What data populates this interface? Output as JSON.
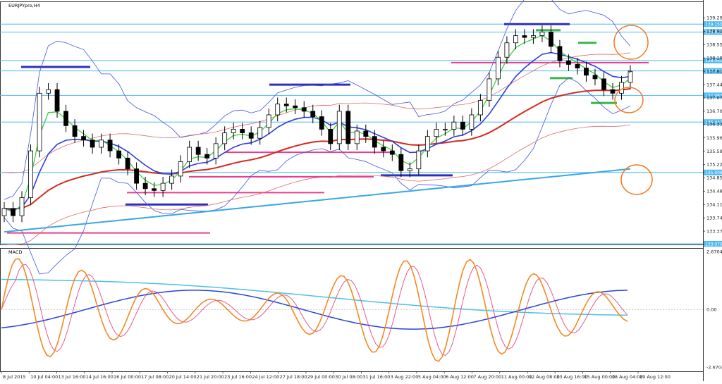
{
  "chart_data": [
    {
      "type": "candlestick",
      "title": "EURJPYpro,H4",
      "symbol": "EURJPYpro",
      "timeframe": "H4",
      "ylim": [
        133.0,
        139.75
      ],
      "y_ticks": [
        "139.290",
        "138.920",
        "138.550",
        "138.180",
        "137.810",
        "137.440",
        "137.070",
        "136.700",
        "136.335",
        "135.960",
        "135.590",
        "135.220",
        "134.850",
        "134.480",
        "134.110",
        "133.740",
        "133.370"
      ],
      "x_ticks": [
        "8 Jul 2015",
        "10 Jul 04:00",
        "13 Jul 16:00",
        "14 Jul 16:00",
        "16 Jul 00:00",
        "17 Jul 08:00",
        "20 Jul 14:00",
        "21 Jul 20:00",
        "23 Jul 16:00",
        "24 Jul 12:00",
        "27 Jul 18:00",
        "29 Jul 00:00",
        "30 Jul 08:00",
        "31 Jul 16:00",
        "3 Aug 22:00",
        "5 Aug 04:00",
        "6 Aug 12:00",
        "7 Aug 20:00",
        "11 Aug 00:00",
        "12 Aug 08:00",
        "13 Aug 16:00",
        "15 Aug 00:00",
        "18 Aug 04:00",
        "19 Aug 12:00"
      ],
      "current_price": "137.779",
      "horizontal_levels": [
        {
          "value": 139.12,
          "label": "139.155",
          "color": "#4fb8f0"
        },
        {
          "value": 138.9,
          "label": "138.822",
          "color": "#4fb8f0"
        },
        {
          "value": 138.11,
          "label": "138.060",
          "color": "#4fb8f0"
        },
        {
          "value": 137.82,
          "label": "137.779",
          "color": "#4fb8f0"
        },
        {
          "value": 137.14,
          "label": "137.087",
          "color": "#4fb8f0"
        },
        {
          "value": 136.4,
          "label": "136.442",
          "color": "#4fb8f0"
        },
        {
          "value": 135.0,
          "label": "135.008",
          "color": "#4fb8f0"
        },
        {
          "value": 133.02,
          "label": "133.079",
          "color": "#4fb8f0"
        }
      ],
      "close_series": [
        134.0,
        133.8,
        134.3,
        135.6,
        137.2,
        137.3,
        136.7,
        136.3,
        136.0,
        135.9,
        135.7,
        135.9,
        135.6,
        135.4,
        135.1,
        134.7,
        134.55,
        134.5,
        134.7,
        134.9,
        135.3,
        135.7,
        135.5,
        135.4,
        135.8,
        136.1,
        136.2,
        136.1,
        135.95,
        136.25,
        136.6,
        136.9,
        136.85,
        136.8,
        136.7,
        136.55,
        136.2,
        135.8,
        136.7,
        135.8,
        136.15,
        136.0,
        135.7,
        135.6,
        135.5,
        135.05,
        135.1,
        135.6,
        136.0,
        136.2,
        136.2,
        136.4,
        136.2,
        136.6,
        137.0,
        137.6,
        138.2,
        138.6,
        138.8,
        138.75,
        138.8,
        138.9,
        138.5,
        138.1,
        138.0,
        137.9,
        137.7,
        137.6,
        137.3,
        137.2,
        137.5,
        137.8
      ],
      "indicators": [
        {
          "name": "moving average (fast)",
          "color": "#3ecf3e"
        },
        {
          "name": "moving average (medium)",
          "color": "#2e3fd6"
        },
        {
          "name": "moving average (slow)",
          "color": "#d42a1f"
        },
        {
          "name": "moving average (long)",
          "color": "#3aa7e8"
        },
        {
          "name": "Bollinger Bands",
          "color": "#3f56dd"
        },
        {
          "name": "envelope",
          "color": "#e06a6a"
        }
      ],
      "lower_panel": {
        "title": "MACD",
        "ylim": [
          -2.85,
          2.85
        ],
        "y_ticks": [
          "2.6704",
          "0.00",
          "-2.6704"
        ],
        "series_colors": {
          "oscillator": "#f08a24",
          "signal": "#e45a8f",
          "macd_line": "#2a44d6",
          "long_line": "#4ec0e8"
        }
      }
    }
  ]
}
